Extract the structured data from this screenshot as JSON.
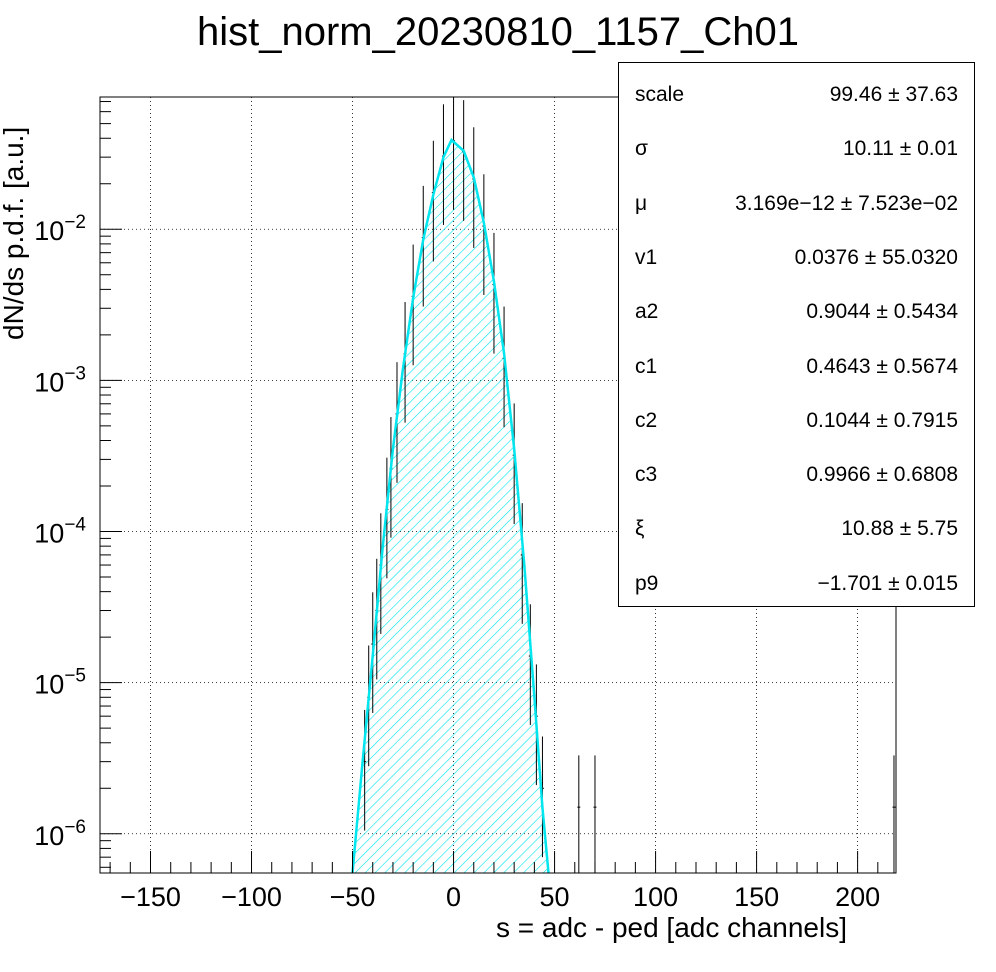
{
  "chart_data": {
    "type": "histogram",
    "title": "hist_norm_20230810_1157_Ch01",
    "xlabel": "s = adc - ped [adc channels]",
    "ylabel": "dN/ds p.d.f. [a.u.]",
    "x_ticks": [
      "−150",
      "−100",
      "−50",
      "0",
      "50",
      "100",
      "150",
      "200"
    ],
    "x_tick_values": [
      -150,
      -100,
      -50,
      0,
      50,
      100,
      150,
      200
    ],
    "xlim": [
      -175,
      219
    ],
    "y_scale": "log",
    "ylim": [
      5.5e-07,
      0.075
    ],
    "y_tick_values": [
      1e-06,
      1e-05,
      0.0001,
      0.001,
      0.01
    ],
    "y_tick_exponents": [
      "−6",
      "−5",
      "−4",
      "−3",
      "−2"
    ],
    "y_tick_base": "10",
    "grid": true,
    "fit_curve": {
      "color": "#00e5ee",
      "peak_x": -1,
      "peak_y": 0.039,
      "points": [
        [
          -50,
          5.5e-07
        ],
        [
          -45,
          3e-06
        ],
        [
          -40,
          1.5e-05
        ],
        [
          -35,
          8e-05
        ],
        [
          -30,
          0.00035
        ],
        [
          -25,
          0.0012
        ],
        [
          -20,
          0.0035
        ],
        [
          -15,
          0.0085
        ],
        [
          -10,
          0.017
        ],
        [
          -5,
          0.03
        ],
        [
          -1,
          0.039
        ],
        [
          5,
          0.033
        ],
        [
          10,
          0.022
        ],
        [
          15,
          0.011
        ],
        [
          20,
          0.0045
        ],
        [
          25,
          0.0015
        ],
        [
          30,
          0.00035
        ],
        [
          35,
          6e-05
        ],
        [
          40,
          8e-06
        ],
        [
          44,
          1.5e-06
        ],
        [
          47,
          5.5e-07
        ]
      ]
    },
    "data_points": [
      [
        -44,
        3e-06
      ],
      [
        -42,
        8e-06
      ],
      [
        -40,
        1.8e-05
      ],
      [
        -38,
        3e-05
      ],
      [
        -36,
        6e-05
      ],
      [
        -33,
        0.00014
      ],
      [
        -31,
        0.00026
      ],
      [
        -28,
        0.0006
      ],
      [
        -24,
        0.0015
      ],
      [
        -20,
        0.0036
      ],
      [
        -15,
        0.0088
      ],
      [
        -10,
        0.0175
      ],
      [
        -5,
        0.0305
      ],
      [
        0,
        0.0385
      ],
      [
        5,
        0.0325
      ],
      [
        10,
        0.0215
      ],
      [
        15,
        0.0105
      ],
      [
        20,
        0.0043
      ],
      [
        25,
        0.0014
      ],
      [
        30,
        0.00032
      ],
      [
        34,
        7e-05
      ],
      [
        38,
        1.5e-05
      ],
      [
        41,
        6e-06
      ],
      [
        44,
        2e-06
      ],
      [
        62,
        1.5e-06
      ],
      [
        70,
        1.5e-06
      ],
      [
        218,
        1.5e-06
      ]
    ],
    "stats": [
      {
        "label": "scale",
        "value": "99.46 ± 37.63"
      },
      {
        "label": "σ",
        "value": "10.11 ± 0.01"
      },
      {
        "label": "μ",
        "value": "3.169e−12 ± 7.523e−02"
      },
      {
        "label": "v1",
        "value": "0.0376 ± 55.0320"
      },
      {
        "label": "a2",
        "value": "0.9044 ± 0.5434"
      },
      {
        "label": "c1",
        "value": "0.4643 ± 0.5674"
      },
      {
        "label": "c2",
        "value": "0.1044 ± 0.7915"
      },
      {
        "label": "c3",
        "value": "0.9966 ± 0.6808"
      },
      {
        "label": "ξ",
        "value": "10.88 ± 5.75"
      },
      {
        "label": "p9",
        "value": "−1.701 ± 0.015"
      }
    ]
  }
}
